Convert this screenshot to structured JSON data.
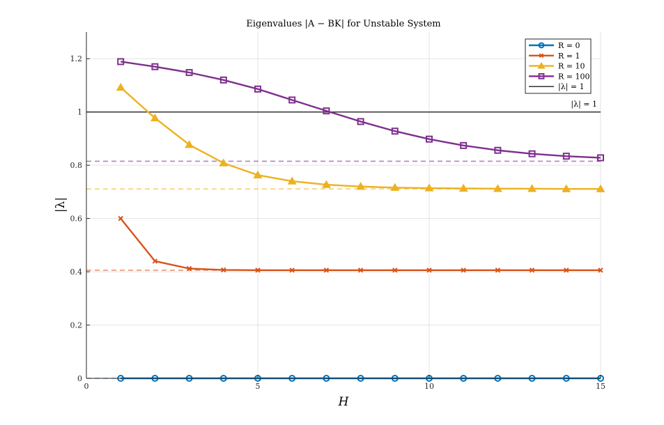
{
  "chart_data": {
    "type": "line",
    "title": "Eigenvalues |A − BK| for Unstable System",
    "xlabel": "H",
    "ylabel": "|λ|",
    "xlim": [
      0,
      15
    ],
    "ylim": [
      0,
      1.3
    ],
    "x_ticks": [
      0,
      5,
      10,
      15
    ],
    "x_tick_labels": [
      "0",
      "5",
      "10",
      "15"
    ],
    "y_ticks": [
      0,
      0.2,
      0.4,
      0.6,
      0.8,
      1.0,
      1.2
    ],
    "y_tick_labels": [
      "0",
      "0.2",
      "0.4",
      "0.6",
      "0.8",
      "1",
      "1.2"
    ],
    "grid": true,
    "legend_position": "top-right",
    "x": [
      1,
      2,
      3,
      4,
      5,
      6,
      7,
      8,
      9,
      10,
      11,
      12,
      13,
      14,
      15
    ],
    "series": [
      {
        "name": "R = 0",
        "color": "#0072BD",
        "marker": "circle",
        "values": [
          0,
          0,
          0,
          0,
          0,
          0,
          0,
          0,
          0,
          0,
          0,
          0,
          0,
          0,
          0
        ],
        "asymptote": 0
      },
      {
        "name": "R = 1",
        "color": "#D95319",
        "marker": "x",
        "values": [
          0.6,
          0.44,
          0.412,
          0.407,
          0.406,
          0.406,
          0.406,
          0.406,
          0.406,
          0.406,
          0.406,
          0.406,
          0.406,
          0.406,
          0.406
        ],
        "asymptote": 0.406
      },
      {
        "name": "R = 10",
        "color": "#EDB120",
        "marker": "triangle",
        "values": [
          1.092,
          0.977,
          0.877,
          0.808,
          0.763,
          0.74,
          0.727,
          0.72,
          0.716,
          0.714,
          0.713,
          0.712,
          0.712,
          0.711,
          0.711
        ],
        "asymptote": 0.711
      },
      {
        "name": "R = 100",
        "color": "#7E2F8E",
        "marker": "square",
        "values": [
          1.189,
          1.17,
          1.148,
          1.12,
          1.086,
          1.045,
          1.004,
          0.964,
          0.928,
          0.898,
          0.874,
          0.856,
          0.843,
          0.834,
          0.828
        ],
        "asymptote": 0.815
      }
    ],
    "reference_line": {
      "name": "|λ| = 1",
      "value": 1.0,
      "color": "#333333",
      "label": "|λ| = 1"
    }
  }
}
